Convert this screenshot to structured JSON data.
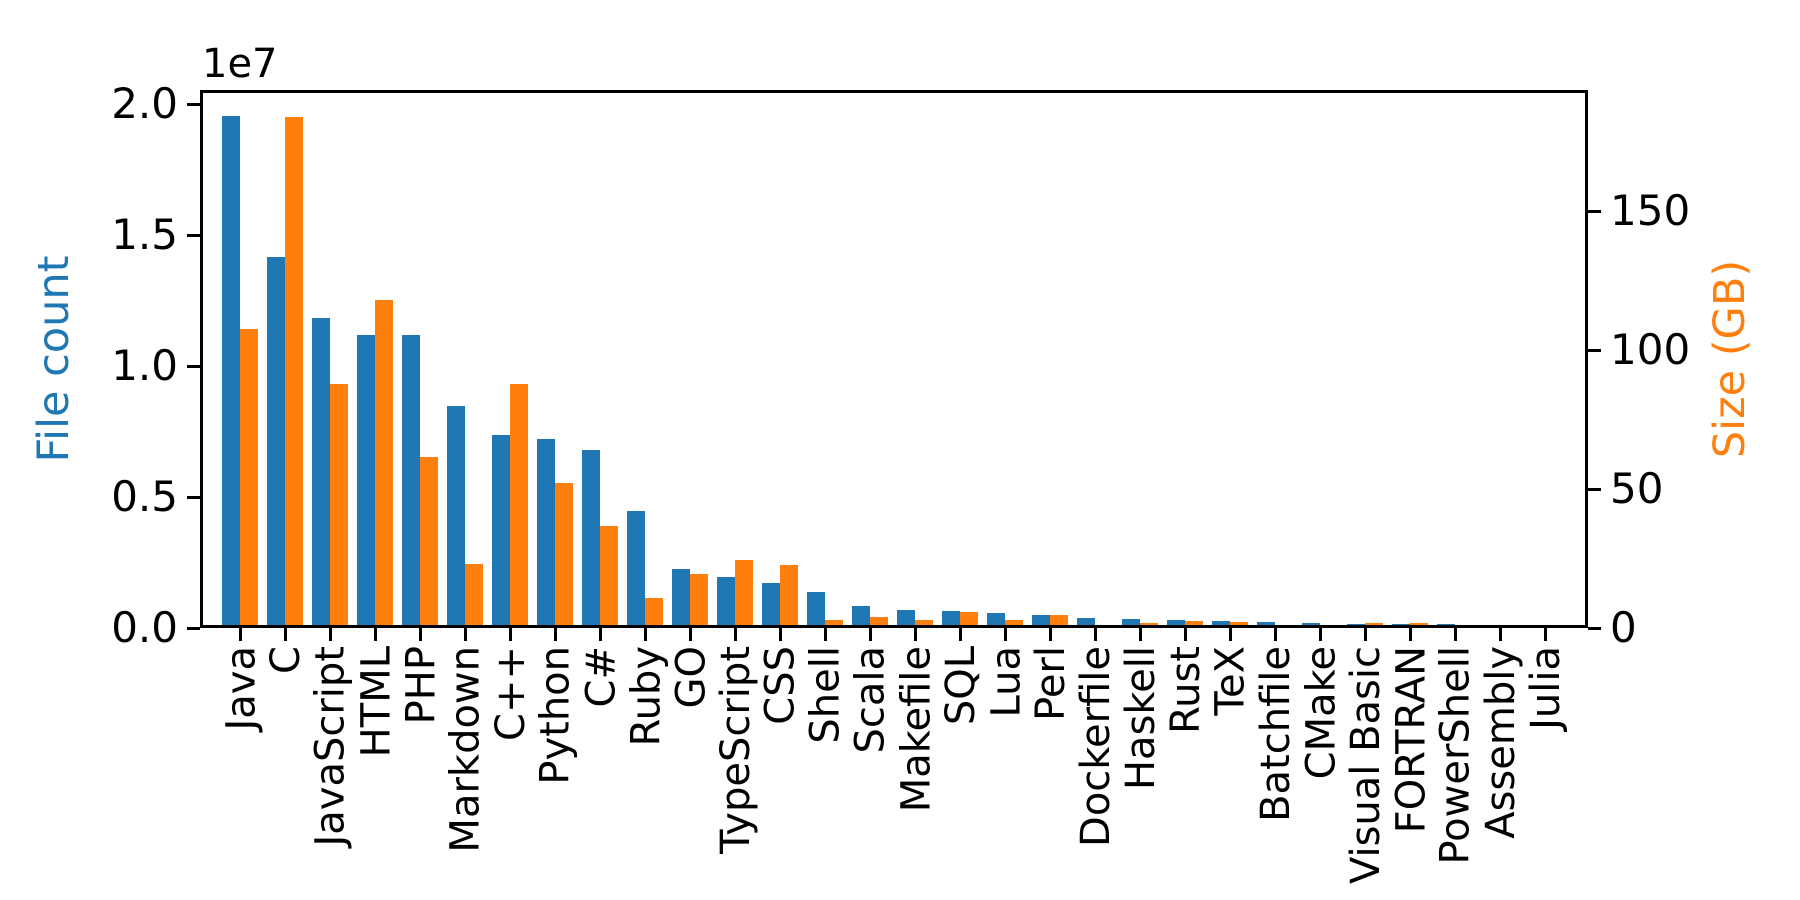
{
  "figure": {
    "background": "#ffffff"
  },
  "chart_data": {
    "type": "bar",
    "title": "",
    "grid": false,
    "legend_position": "none",
    "categories": [
      "Java",
      "C",
      "JavaScript",
      "HTML",
      "PHP",
      "Markdown",
      "C++",
      "Python",
      "C#",
      "Ruby",
      "GO",
      "TypeScript",
      "CSS",
      "Shell",
      "Scala",
      "Makefile",
      "SQL",
      "Lua",
      "Perl",
      "Dockerfile",
      "Haskell",
      "Rust",
      "TeX",
      "Batchfile",
      "CMake",
      "Visual Basic",
      "FORTRAN",
      "PowerShell",
      "Assembly",
      "Julia"
    ],
    "series": [
      {
        "name": "File count",
        "axis": "left",
        "color": "#1f77b4",
        "values": [
          19548190,
          14143113,
          11839883,
          11178557,
          11177610,
          8464626,
          7380520,
          7226626,
          6811652,
          4473331,
          2265436,
          1940406,
          1734406,
          1385648,
          835755,
          679430,
          656671,
          578554,
          497949,
          366505,
          340623,
          322431,
          251015,
          236945,
          175282,
          155652,
          142038,
          136846,
          82905,
          58317
        ]
      },
      {
        "name": "Size (GB)",
        "axis": "right",
        "color": "#ff7f0e",
        "values": [
          107.7,
          183.83,
          87.82,
          118.12,
          61.41,
          23.09,
          87.73,
          52.03,
          36.83,
          10.95,
          19.28,
          24.59,
          22.67,
          3.01,
          3.87,
          2.92,
          5.67,
          2.81,
          4.7,
          0.71,
          1.85,
          2.68,
          2.15,
          0.7,
          0.54,
          1.91,
          1.62,
          0.69,
          0.78,
          0.29
        ]
      }
    ],
    "left_axis": {
      "label": "File count",
      "label_color": "#1f77b4",
      "offset_text": "1e7",
      "tick_labels": [
        "0.0",
        "0.5",
        "1.0",
        "1.5",
        "2.0"
      ],
      "tick_values": [
        0,
        5000000,
        10000000,
        15000000,
        20000000
      ],
      "range": [
        0,
        20534000
      ]
    },
    "right_axis": {
      "label": "Size (GB)",
      "label_color": "#ff7f0e",
      "tick_labels": [
        "0",
        "50",
        "100",
        "150"
      ],
      "tick_values": [
        0,
        50,
        100,
        150
      ],
      "range": [
        0,
        193.5
      ]
    },
    "x_axis": {
      "label": "",
      "tick_label_rotation": 90
    }
  }
}
